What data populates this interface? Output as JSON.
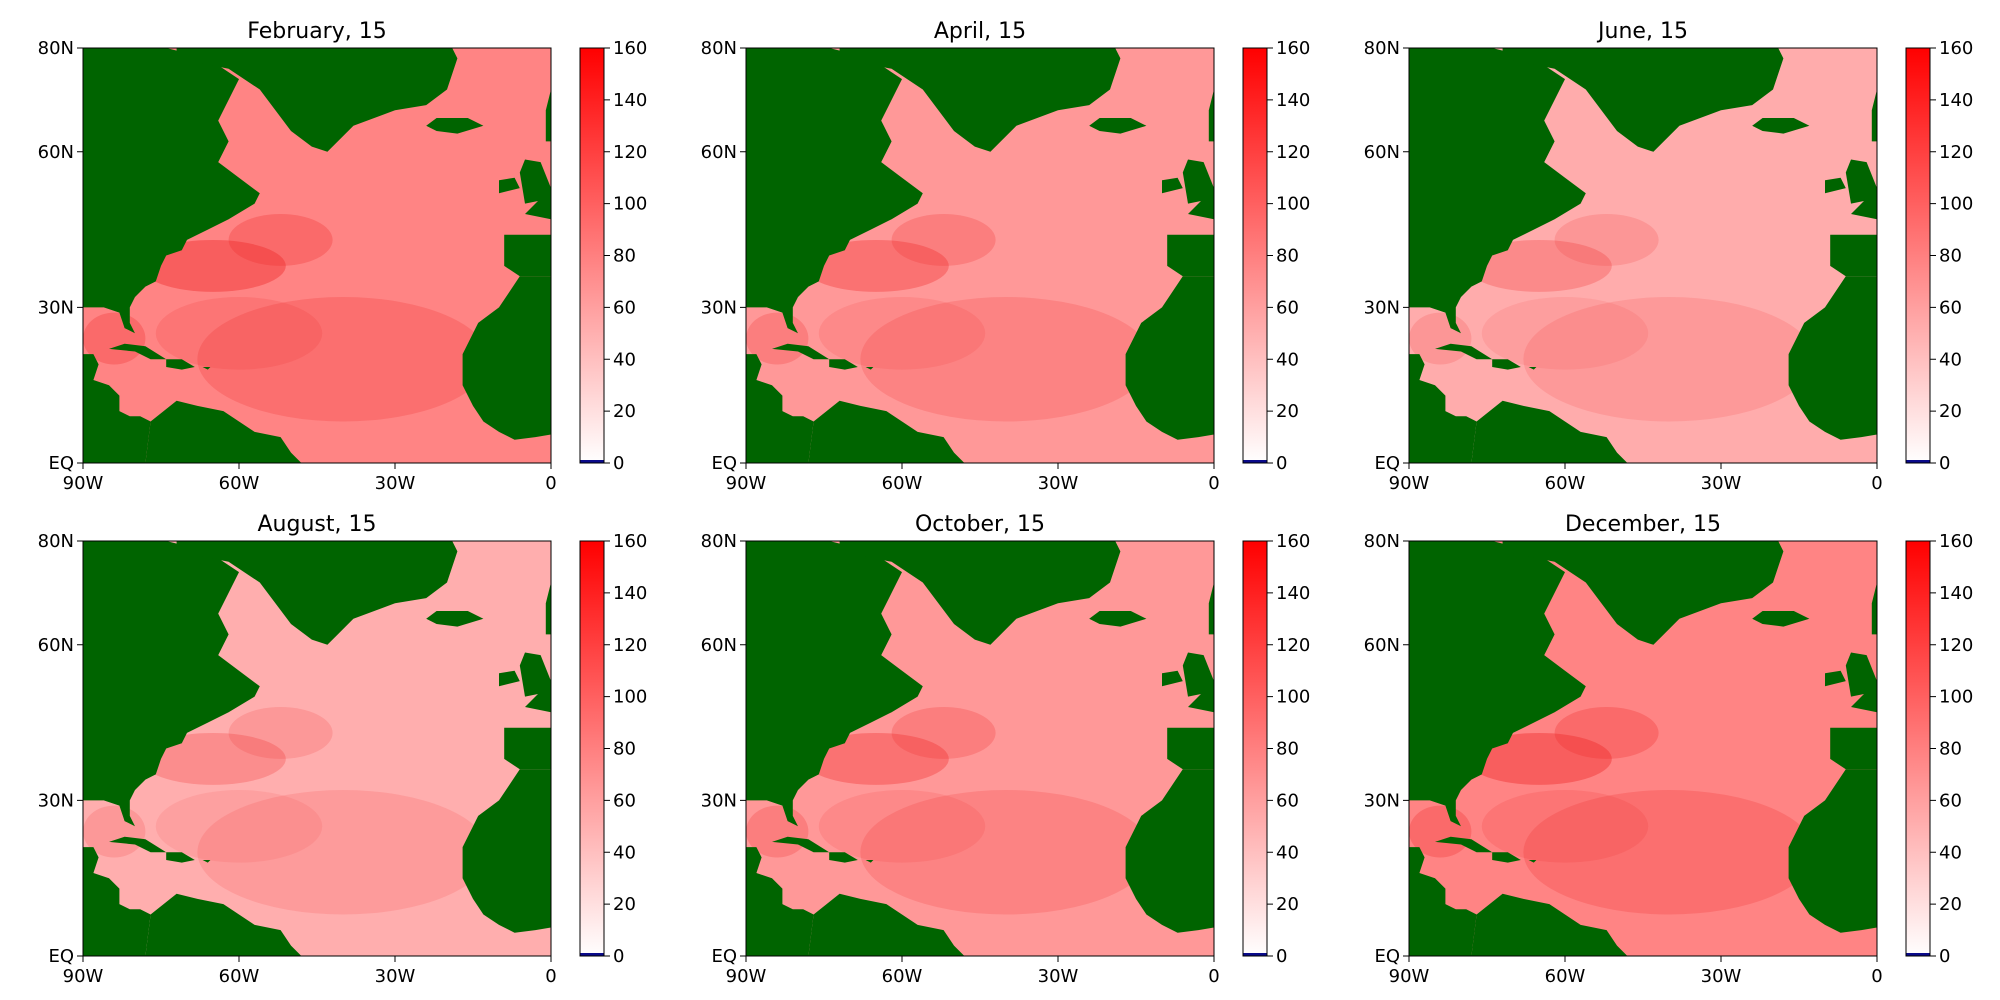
{
  "chart_data": [
    {
      "type": "heatmap",
      "title": "February, 15",
      "intensity": 1.0,
      "xticks": [
        "90W",
        "60W",
        "30W",
        "0"
      ],
      "xtick_values": [
        -90,
        -60,
        -30,
        0
      ],
      "yticks": [
        "EQ",
        "30N",
        "60N",
        "80N"
      ],
      "ytick_values": [
        0,
        30,
        60,
        80
      ],
      "xlim": [
        -90,
        0
      ],
      "ylim": [
        0,
        80
      ],
      "colorbar": {
        "ticks": [
          "0",
          "20",
          "40",
          "60",
          "80",
          "100",
          "120",
          "140",
          "160"
        ],
        "range": [
          0,
          160
        ]
      }
    },
    {
      "type": "heatmap",
      "title": "April, 15",
      "intensity": 0.8,
      "xticks": [
        "90W",
        "60W",
        "30W",
        "0"
      ],
      "xtick_values": [
        -90,
        -60,
        -30,
        0
      ],
      "yticks": [
        "EQ",
        "30N",
        "60N",
        "80N"
      ],
      "ytick_values": [
        0,
        30,
        60,
        80
      ],
      "xlim": [
        -90,
        0
      ],
      "ylim": [
        0,
        80
      ],
      "colorbar": {
        "ticks": [
          "0",
          "20",
          "40",
          "60",
          "80",
          "100",
          "120",
          "140",
          "160"
        ],
        "range": [
          0,
          160
        ]
      }
    },
    {
      "type": "heatmap",
      "title": "June, 15",
      "intensity": 0.6,
      "xticks": [
        "90W",
        "60W",
        "30W",
        "0"
      ],
      "xtick_values": [
        -90,
        -60,
        -30,
        0
      ],
      "yticks": [
        "EQ",
        "30N",
        "60N",
        "80N"
      ],
      "ytick_values": [
        0,
        30,
        60,
        80
      ],
      "xlim": [
        -90,
        0
      ],
      "ylim": [
        0,
        80
      ],
      "colorbar": {
        "ticks": [
          "0",
          "20",
          "40",
          "60",
          "80",
          "100",
          "120",
          "140",
          "160"
        ],
        "range": [
          0,
          160
        ]
      }
    },
    {
      "type": "heatmap",
      "title": "August, 15",
      "intensity": 0.58,
      "xticks": [
        "90W",
        "60W",
        "30W",
        "0"
      ],
      "xtick_values": [
        -90,
        -60,
        -30,
        0
      ],
      "yticks": [
        "EQ",
        "30N",
        "60N",
        "80N"
      ],
      "ytick_values": [
        0,
        30,
        60,
        80
      ],
      "xlim": [
        -90,
        0
      ],
      "ylim": [
        0,
        80
      ],
      "colorbar": {
        "ticks": [
          "0",
          "20",
          "40",
          "60",
          "80",
          "100",
          "120",
          "140",
          "160"
        ],
        "range": [
          0,
          160
        ]
      }
    },
    {
      "type": "heatmap",
      "title": "October, 15",
      "intensity": 0.8,
      "xticks": [
        "90W",
        "60W",
        "30W",
        "0"
      ],
      "xtick_values": [
        -90,
        -60,
        -30,
        0
      ],
      "yticks": [
        "EQ",
        "30N",
        "60N",
        "80N"
      ],
      "ytick_values": [
        0,
        30,
        60,
        80
      ],
      "xlim": [
        -90,
        0
      ],
      "ylim": [
        0,
        80
      ],
      "colorbar": {
        "ticks": [
          "0",
          "20",
          "40",
          "60",
          "80",
          "100",
          "120",
          "140",
          "160"
        ],
        "range": [
          0,
          160
        ]
      }
    },
    {
      "type": "heatmap",
      "title": "December, 15",
      "intensity": 1.0,
      "xticks": [
        "90W",
        "60W",
        "30W",
        "0"
      ],
      "xtick_values": [
        -90,
        -60,
        -30,
        0
      ],
      "yticks": [
        "EQ",
        "30N",
        "60N",
        "80N"
      ],
      "ytick_values": [
        0,
        30,
        60,
        80
      ],
      "xlim": [
        -90,
        0
      ],
      "ylim": [
        0,
        80
      ],
      "colorbar": {
        "ticks": [
          "0",
          "20",
          "40",
          "60",
          "80",
          "100",
          "120",
          "140",
          "160"
        ],
        "range": [
          0,
          160
        ]
      }
    }
  ],
  "colors": {
    "land": "#006400",
    "colormap_low": "#ffffff",
    "colormap_high": "#ff0000",
    "colorbar_bottom_band": "#0a0a8a"
  }
}
